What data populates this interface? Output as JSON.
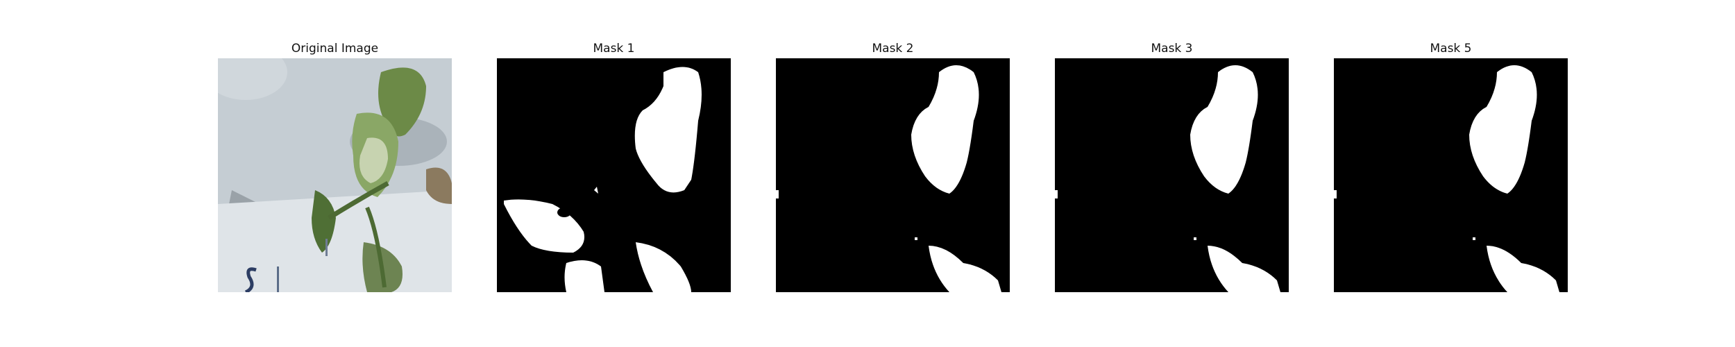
{
  "figure": {
    "panels": [
      {
        "title": "Original Image",
        "kind": "photo"
      },
      {
        "title": "Mask 1",
        "kind": "mask"
      },
      {
        "title": "Mask 2",
        "kind": "mask"
      },
      {
        "title": "Mask 3",
        "kind": "mask"
      },
      {
        "title": "Mask 5",
        "kind": "mask"
      }
    ]
  },
  "colors": {
    "mask_background": "#000000",
    "mask_foreground": "#ffffff",
    "photo_background": "#b9c2c9",
    "leaf_green": "#5f7f3f",
    "leaf_dark": "#3b5a2b"
  }
}
